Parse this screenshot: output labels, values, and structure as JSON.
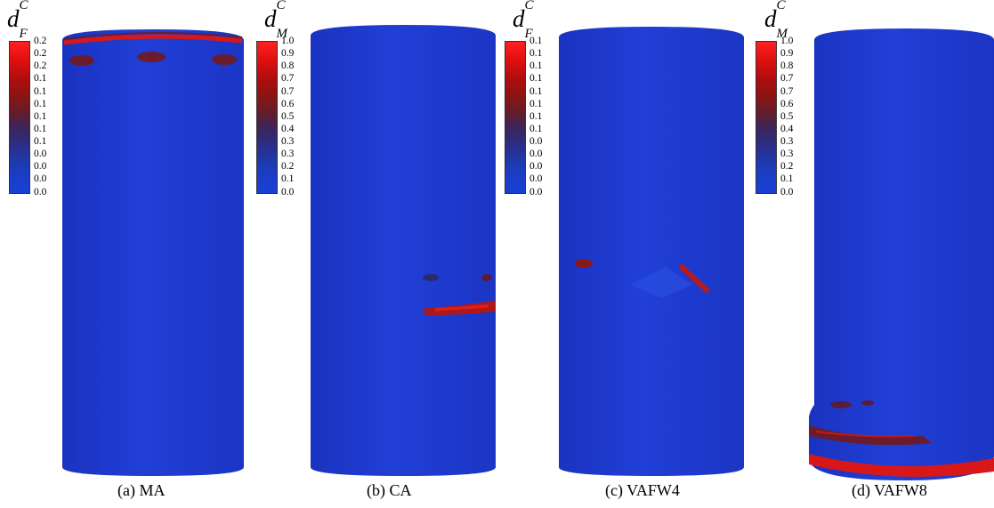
{
  "panels": [
    {
      "caption": "(a) MA",
      "cb_symbol": "d",
      "cb_sup": "C",
      "cb_sub": "F",
      "ticks": [
        "0.2",
        "0.2",
        "0.2",
        "0.1",
        "0.1",
        "0.1",
        "0.1",
        "0.1",
        "0.1",
        "0.0",
        "0.0",
        "0.0",
        "0.0"
      ]
    },
    {
      "caption": "(b) CA",
      "cb_symbol": "d",
      "cb_sup": "C",
      "cb_sub": "M",
      "ticks": [
        "1.0",
        "0.9",
        "0.8",
        "0.7",
        "0.7",
        "0.6",
        "0.5",
        "0.4",
        "0.3",
        "0.3",
        "0.2",
        "0.1",
        "0.0"
      ]
    },
    {
      "caption": "(c) VAFW4",
      "cb_symbol": "d",
      "cb_sup": "C",
      "cb_sub": "F",
      "ticks": [
        "0.1",
        "0.1",
        "0.1",
        "0.1",
        "0.1",
        "0.1",
        "0.1",
        "0.1",
        "0.0",
        "0.0",
        "0.0",
        "0.0",
        "0.0"
      ]
    },
    {
      "caption": "(d) VAFW8",
      "cb_symbol": "d",
      "cb_sup": "C",
      "cb_sub": "M",
      "ticks": [
        "1.0",
        "0.9",
        "0.8",
        "0.7",
        "0.7",
        "0.6",
        "0.5",
        "0.4",
        "0.3",
        "0.3",
        "0.2",
        "0.1",
        "0.0"
      ]
    }
  ],
  "colors": {
    "cylinder_blue": "#1f3bd0",
    "cylinder_shade": "#1a32b8",
    "damage_red": "#d81818",
    "damage_dark": "#6a1c2c"
  }
}
